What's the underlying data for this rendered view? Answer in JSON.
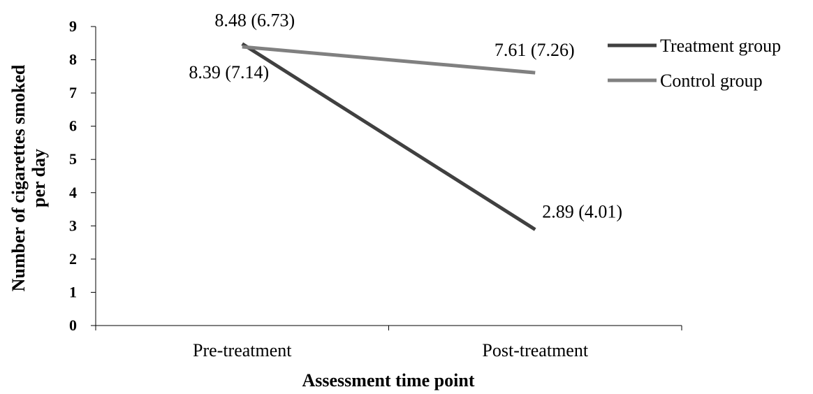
{
  "chart_data": {
    "type": "line",
    "categories": [
      "Pre-treatment",
      "Post-treatment"
    ],
    "xlabel": "Assessment time point",
    "ylabel": [
      "Number of cigarettes smoked",
      "per day"
    ],
    "ylim": [
      0,
      9
    ],
    "yticks": [
      "0",
      "1",
      "2",
      "3",
      "4",
      "5",
      "6",
      "7",
      "8",
      "9"
    ],
    "grid": false,
    "legend_position": "top-right",
    "series": [
      {
        "name": "Treatment group",
        "values": [
          8.48,
          2.89
        ],
        "labels": [
          "8.48 (6.73)",
          "2.89 (4.01)"
        ],
        "color": "#404040"
      },
      {
        "name": "Control group",
        "values": [
          8.39,
          7.61
        ],
        "labels": [
          "8.39 (7.14)",
          "7.61 (7.26)"
        ],
        "color": "#808080"
      }
    ]
  }
}
